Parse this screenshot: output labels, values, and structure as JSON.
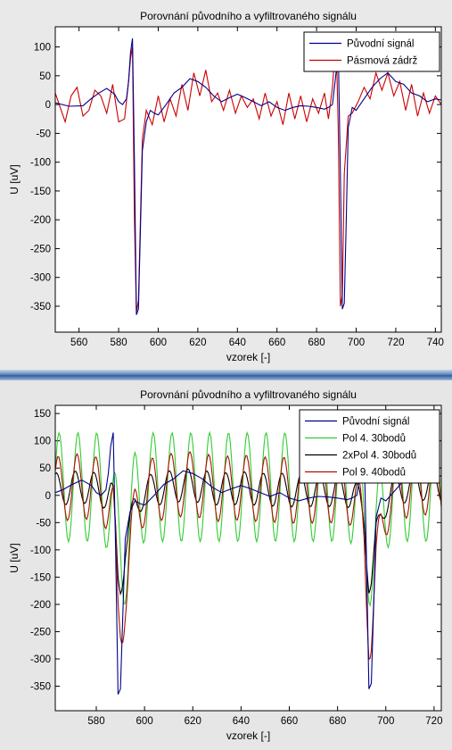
{
  "chart_data": [
    {
      "type": "line",
      "title": "Porovnání původního a vyfiltrovaného signálu",
      "xlabel": "vzorek [-]",
      "ylabel": "U [uV]",
      "xlim": [
        548,
        743
      ],
      "ylim": [
        -395,
        135
      ],
      "xticks": [
        560,
        580,
        600,
        620,
        640,
        660,
        680,
        700,
        720,
        740
      ],
      "yticks": [
        100,
        50,
        0,
        -50,
        -100,
        -150,
        -200,
        -250,
        -300,
        -350
      ],
      "grid": false,
      "legend_position": "top-right",
      "series": [
        {
          "name": "Původní signál",
          "color": "#00008b",
          "x": [
            548,
            555,
            562,
            566,
            570,
            574,
            578,
            580,
            582,
            584,
            585,
            586,
            587,
            588,
            589,
            590,
            592,
            594,
            596,
            598,
            600,
            604,
            608,
            612,
            616,
            620,
            624,
            628,
            632,
            636,
            640,
            644,
            648,
            652,
            656,
            660,
            664,
            668,
            672,
            676,
            680,
            684,
            686,
            688,
            690,
            691,
            692,
            693,
            694,
            695,
            696,
            698,
            700,
            704,
            708,
            712,
            716,
            720,
            724,
            728,
            732,
            736,
            740,
            743
          ],
          "y": [
            3,
            -3,
            -2,
            10,
            20,
            28,
            18,
            5,
            0,
            10,
            40,
            90,
            115,
            -100,
            -365,
            -355,
            -80,
            -30,
            -10,
            -15,
            -18,
            0,
            20,
            30,
            45,
            40,
            30,
            15,
            5,
            12,
            18,
            12,
            5,
            -2,
            5,
            -5,
            -10,
            -5,
            -2,
            -3,
            -5,
            -8,
            -5,
            0,
            60,
            90,
            -120,
            -355,
            -345,
            -200,
            -40,
            -5,
            -10,
            10,
            30,
            45,
            55,
            40,
            35,
            20,
            15,
            5,
            10,
            8
          ]
        },
        {
          "name": "Pásmová zádrž",
          "color": "#cc0000",
          "x": [
            548,
            550,
            553,
            556,
            559,
            562,
            565,
            568,
            571,
            574,
            577,
            580,
            583,
            585,
            586,
            587,
            588,
            589,
            590,
            592,
            594,
            597,
            600,
            603,
            606,
            609,
            612,
            615,
            618,
            621,
            624,
            627,
            630,
            633,
            636,
            639,
            642,
            645,
            648,
            651,
            654,
            657,
            660,
            663,
            666,
            669,
            672,
            675,
            678,
            681,
            684,
            686,
            688,
            689,
            690,
            691,
            692,
            693,
            694,
            696,
            698,
            701,
            704,
            707,
            710,
            713,
            716,
            719,
            722,
            725,
            728,
            731,
            734,
            737,
            740,
            743
          ],
          "y": [
            20,
            0,
            -30,
            15,
            30,
            -20,
            -10,
            25,
            15,
            -15,
            35,
            -30,
            -25,
            40,
            80,
            100,
            -200,
            -360,
            -340,
            -60,
            -10,
            -35,
            15,
            -30,
            10,
            -20,
            35,
            -10,
            55,
            15,
            60,
            5,
            20,
            -10,
            25,
            -15,
            15,
            -5,
            10,
            -25,
            20,
            -20,
            5,
            -35,
            20,
            -25,
            15,
            -30,
            10,
            -15,
            20,
            -25,
            30,
            80,
            100,
            -50,
            -350,
            -330,
            -120,
            -20,
            -15,
            5,
            30,
            10,
            55,
            25,
            55,
            15,
            40,
            -10,
            35,
            -20,
            20,
            -15,
            15,
            0
          ]
        }
      ]
    },
    {
      "type": "line",
      "title": "Porovnání původního a vyfiltrovaného signálu",
      "xlabel": "vzorek [-]",
      "ylabel": "U [uV]",
      "xlim": [
        563,
        723
      ],
      "ylim": [
        -395,
        165
      ],
      "xticks": [
        580,
        600,
        620,
        640,
        660,
        680,
        700,
        720
      ],
      "yticks": [
        150,
        100,
        50,
        0,
        -50,
        -100,
        -150,
        -200,
        -250,
        -300,
        -350
      ],
      "grid": false,
      "legend_position": "top-right",
      "series": [
        {
          "name": "Původní signál",
          "color": "#00008b",
          "x": [
            563,
            566,
            570,
            574,
            578,
            580,
            582,
            584,
            585,
            586,
            587,
            588,
            589,
            590,
            592,
            594,
            596,
            598,
            600,
            604,
            608,
            612,
            616,
            620,
            624,
            628,
            632,
            636,
            640,
            644,
            648,
            652,
            656,
            660,
            664,
            668,
            672,
            676,
            680,
            684,
            686,
            688,
            690,
            691,
            692,
            693,
            694,
            695,
            696,
            698,
            700,
            704,
            708,
            712,
            716,
            720,
            723
          ],
          "y": [
            5,
            10,
            20,
            28,
            18,
            5,
            0,
            10,
            40,
            90,
            115,
            -100,
            -365,
            -355,
            -80,
            -30,
            -10,
            -15,
            -18,
            0,
            20,
            30,
            45,
            40,
            30,
            15,
            5,
            12,
            18,
            12,
            5,
            -2,
            5,
            -5,
            -10,
            -5,
            -2,
            -3,
            -5,
            -8,
            -5,
            0,
            60,
            90,
            -120,
            -355,
            -345,
            -200,
            -40,
            -5,
            -10,
            10,
            30,
            45,
            55,
            40,
            35
          ]
        },
        {
          "name": "Pol 4. 30bodů",
          "color": "#33cc33",
          "amp": 100,
          "period": 7.8,
          "phase": 0.3
        },
        {
          "name": "2xPol 4. 30bodů",
          "color": "#000000"
        },
        {
          "name": "Pol 9. 40bodů",
          "color": "#aa1100"
        }
      ]
    }
  ]
}
